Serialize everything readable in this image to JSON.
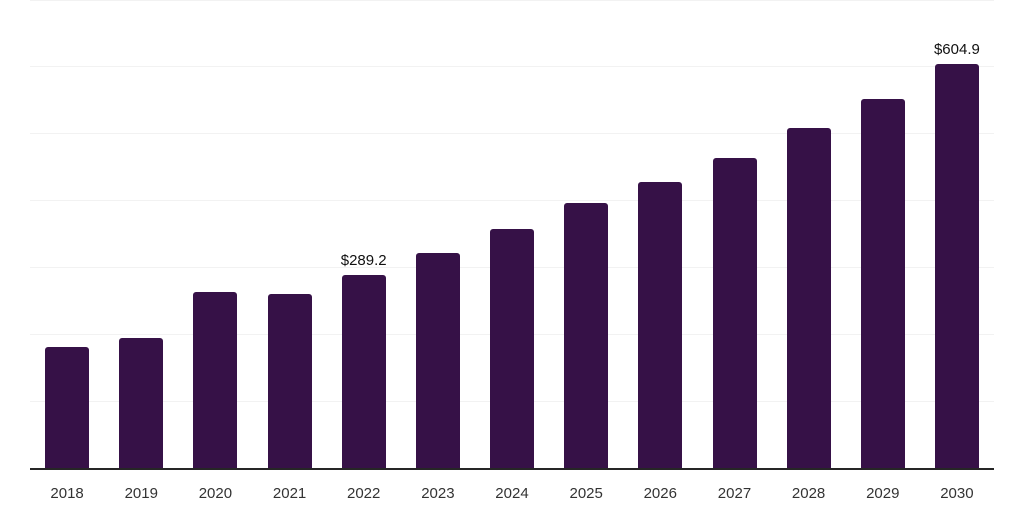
{
  "chart_data": {
    "type": "bar",
    "title": "",
    "xlabel": "",
    "ylabel": "",
    "categories": [
      "2018",
      "2019",
      "2020",
      "2021",
      "2022",
      "2023",
      "2024",
      "2025",
      "2026",
      "2027",
      "2028",
      "2029",
      "2030"
    ],
    "values": [
      181,
      194,
      263,
      261,
      289.2,
      322,
      357,
      396,
      428,
      464,
      508,
      552,
      604.9
    ],
    "point_labels": [
      "",
      "",
      "",
      "",
      "$289.2",
      "",
      "",
      "",
      "",
      "",
      "",
      "",
      "$604.9"
    ],
    "ylim": [
      0,
      700
    ],
    "grid_step": 100,
    "grid": "on",
    "legend": "none",
    "y_axis_labels": "none",
    "colors": {
      "bar": "#361147",
      "gridline": "#f2f2f2",
      "axis_line": "#262626",
      "tick_label": "#333333",
      "point_label": "#111111",
      "background": "#ffffff"
    }
  }
}
